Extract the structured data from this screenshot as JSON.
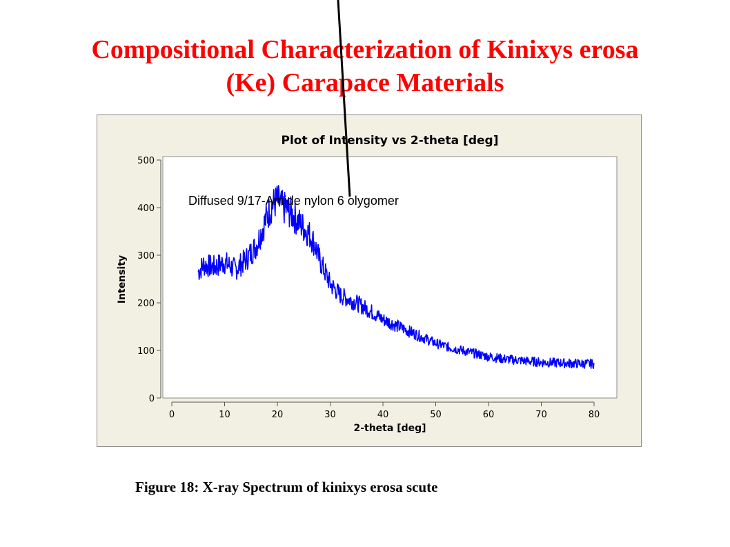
{
  "slide": {
    "title_line1": "Compositional Characterization of Kinixys erosa",
    "title_line2": "(Ke) Carapace Materials",
    "caption": "Figure 18: X-ray Spectrum of kinixys erosa scute",
    "annotation": "Diffused 9/17-Amide nylon 6 olygomer"
  },
  "colors": {
    "title": "#ff0000",
    "series": "#0000ff",
    "frame_bg": "#f2f0e2",
    "plot_bg": "#ffffff"
  },
  "chart_data": {
    "type": "line",
    "title": "Plot of Intensity vs 2-theta [deg]",
    "xlabel": "2-theta [deg]",
    "ylabel": "Intensity",
    "xlim": [
      0,
      80
    ],
    "ylim": [
      0,
      500
    ],
    "xticks": [
      0,
      10,
      20,
      30,
      40,
      50,
      60,
      70,
      80
    ],
    "yticks": [
      0,
      100,
      200,
      300,
      400,
      500
    ],
    "grid": false,
    "series": [
      {
        "x": [
          5,
          6,
          8,
          10,
          12,
          14,
          16,
          18,
          19,
          20,
          21,
          22,
          24,
          26,
          27,
          28,
          30,
          32,
          35,
          38,
          40,
          43,
          45,
          48,
          50,
          53,
          55,
          58,
          60,
          63,
          65,
          68,
          70,
          73,
          75,
          78,
          80
        ],
        "y": [
          265,
          280,
          275,
          285,
          270,
          290,
          320,
          380,
          405,
          415,
          400,
          395,
          370,
          345,
          325,
          290,
          240,
          215,
          200,
          180,
          165,
          150,
          140,
          125,
          115,
          105,
          100,
          92,
          87,
          82,
          80,
          77,
          75,
          74,
          73,
          72,
          72
        ]
      }
    ]
  }
}
